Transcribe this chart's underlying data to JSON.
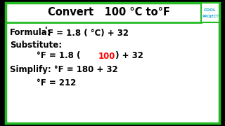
{
  "bg_color": "#ffffff",
  "outer_border_color": "#22bb22",
  "title_color": "#000000",
  "cool_text_color": "#22aacc",
  "cool_box_border": "#22bb22",
  "line1_prefix": "Formula:",
  "line1_sup": "°",
  "line1_main": "F = 1.8 ( °C) + 32",
  "line2": "Substitute:",
  "line3_pre": "°F = 1.8 ( ",
  "line3_red": "100",
  "line3_end": " ) + 32",
  "line4": "Simplify: °F = 180 + 32",
  "line5": "°F = 212",
  "text_color": "#000000",
  "red_color": "#ff0000",
  "title_normal": "Convert   100 °C to°F",
  "cool_line1": "COOL",
  "cool_line2": "PROJECT"
}
